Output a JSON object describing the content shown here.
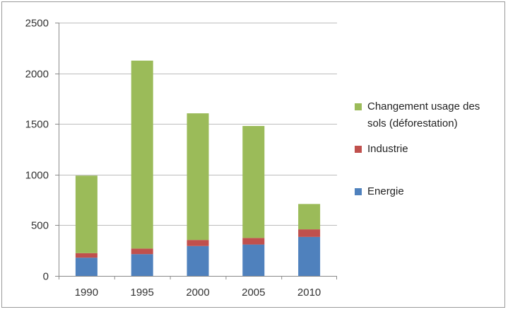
{
  "chart_data": {
    "type": "bar",
    "stacked": true,
    "categories": [
      "1990",
      "1995",
      "2000",
      "2005",
      "2010"
    ],
    "series": [
      {
        "name": "Energie",
        "color": "#4f81bd",
        "values": [
          180,
          215,
          295,
          310,
          385
        ]
      },
      {
        "name": "Industrie",
        "color": "#c0504d",
        "values": [
          45,
          55,
          60,
          65,
          75
        ]
      },
      {
        "name": "Changement usage des sols (déforestation)",
        "color": "#9bbb59",
        "values": [
          765,
          1855,
          1250,
          1105,
          250
        ]
      }
    ],
    "ylim": [
      0,
      2500
    ],
    "yticks": [
      0,
      500,
      1000,
      1500,
      2000,
      2500
    ],
    "grid": true,
    "legend_position": "right",
    "legend": [
      {
        "line1": "Changement usage des",
        "line2": "sols (déforestation)",
        "color": "#9bbb59"
      },
      {
        "line1": "Industrie",
        "line2": "",
        "color": "#c0504d"
      },
      {
        "line1": "Energie",
        "line2": "",
        "color": "#4f81bd"
      }
    ],
    "title": "",
    "xlabel": "",
    "ylabel": ""
  }
}
